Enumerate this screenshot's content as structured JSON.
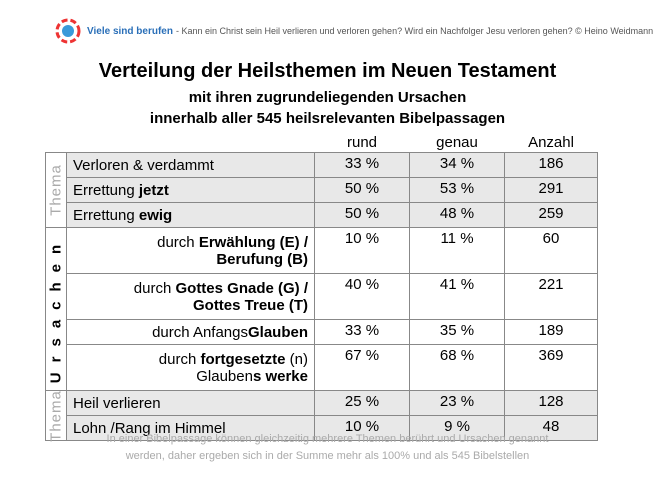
{
  "header": {
    "site": "Viele sind berufen",
    "tagline": "- Kann ein Christ sein Heil verlieren und verloren gehen? Wird ein Nachfolger Jesu verloren gehen? © Heino Weidmann"
  },
  "title": "Verteilung der Heilsthemen im Neuen Testament",
  "subtitle": [
    "mit ihren zugrundeliegenden Ursachen",
    "innerhalb aller 545 heilsrelevanten Bibelpassagen"
  ],
  "table": {
    "columns": [
      "rund",
      "genau",
      "Anzahl"
    ],
    "groups": [
      {
        "label": "Thema",
        "rows": [
          {
            "lines": [
              [
                {
                  "text": "Verloren & verdammt"
                }
              ]
            ],
            "cells": [
              "33 %",
              "34 %",
              "186"
            ]
          },
          {
            "lines": [
              [
                {
                  "text": "Errettung "
                },
                {
                  "text": "jetzt",
                  "bold": true
                }
              ]
            ],
            "cells": [
              "50 %",
              "53 %",
              "291"
            ]
          },
          {
            "lines": [
              [
                {
                  "text": "Errettung "
                },
                {
                  "text": "ewig",
                  "bold": true
                }
              ]
            ],
            "cells": [
              "50 %",
              "48 %",
              "259"
            ]
          }
        ]
      },
      {
        "label": "Ursachen",
        "rows": [
          {
            "lines": [
              [
                {
                  "text": "durch "
                },
                {
                  "text": "Erwählung (E) /",
                  "bold": true
                }
              ],
              [
                {
                  "text": "Berufung (B)",
                  "bold": true
                }
              ]
            ],
            "cells": [
              "10 %",
              "11 %",
              "60"
            ]
          },
          {
            "lines": [
              [
                {
                  "text": "durch "
                },
                {
                  "text": "Gottes Gnade (G) /",
                  "bold": true
                }
              ],
              [
                {
                  "text": "Gottes Treue (T)",
                  "bold": true
                }
              ]
            ],
            "cells": [
              "40 %",
              "41 %",
              "221"
            ]
          },
          {
            "lines": [
              [
                {
                  "text": "durch Anfangs"
                },
                {
                  "text": "Glauben",
                  "bold": true
                }
              ]
            ],
            "cells": [
              "33 %",
              "35 %",
              "189"
            ]
          },
          {
            "lines": [
              [
                {
                  "text": "durch "
                },
                {
                  "text": "fortgesetzte",
                  "bold": true
                },
                {
                  "text": " (n)"
                }
              ],
              [
                {
                  "text": "Glauben"
                },
                {
                  "text": "s werke",
                  "bold": true
                }
              ]
            ],
            "cells": [
              "67 %",
              "68 %",
              "369"
            ]
          }
        ]
      },
      {
        "label": "Thema",
        "rows": [
          {
            "lines": [
              [
                {
                  "text": "Heil verlieren"
                }
              ]
            ],
            "cells": [
              "25 %",
              "23 %",
              "128"
            ]
          },
          {
            "lines": [
              [
                {
                  "text": "Lohn /Rang im Himmel"
                }
              ]
            ],
            "cells": [
              "10 %",
              "9 %",
              "48"
            ]
          }
        ]
      }
    ]
  },
  "footnote": [
    "In einer Bibelpassage können gleichzeitig mehrere Themen berührt und Ursachen genannt",
    "werden, daher ergeben sich in der Summe mehr als 100% und als 545 Bibelstellen"
  ]
}
